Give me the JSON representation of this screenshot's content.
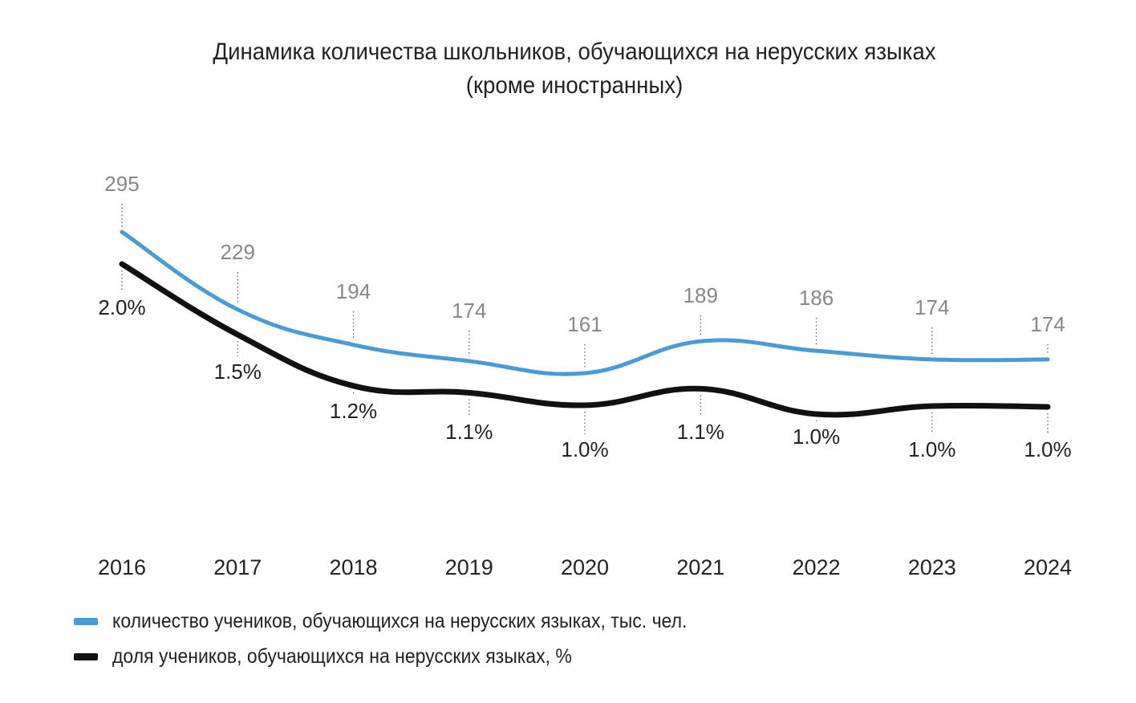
{
  "title": {
    "line1": "Динамика количества школьников, обучающихся на нерусских языках",
    "line2": "(кроме  иностранных)"
  },
  "colors": {
    "count_series": "#4a9ad6",
    "share_series": "#111111"
  },
  "legend": [
    {
      "label": "количество учеников, обучающихся на нерусских языках, тыс. чел.",
      "color": "#4a9ad6"
    },
    {
      "label": "доля учеников, обучающихся на нерусских языках, %",
      "color": "#111111"
    }
  ],
  "chart_data": {
    "type": "line",
    "title": "Динамика количества школьников, обучающихся на нерусских языках (кроме иностранных)",
    "xlabel": "",
    "ylabel": "",
    "categories": [
      "2016",
      "2017",
      "2018",
      "2019",
      "2020",
      "2021",
      "2022",
      "2023",
      "2024"
    ],
    "series": [
      {
        "name": "количество учеников, обучающихся на нерусских языках, тыс. чел.",
        "values": [
          295,
          229,
          194,
          174,
          161,
          189,
          186,
          174,
          174
        ],
        "labels": [
          "295",
          "229",
          "194",
          "174",
          "161",
          "189",
          "186",
          "174",
          "174"
        ],
        "color": "#4a9ad6"
      },
      {
        "name": "доля учеников, обучающихся на нерусских языках, %",
        "values": [
          2.0,
          1.5,
          1.2,
          1.1,
          1.0,
          1.1,
          1.0,
          1.0,
          1.0
        ],
        "labels": [
          "2.0%",
          "1.5%",
          "1.2%",
          "1.1%",
          "1.0%",
          "1.1%",
          "1.0%",
          "1.0%",
          "1.0%"
        ],
        "color": "#111111"
      }
    ],
    "grid": false,
    "smooth": true,
    "legend_position": "bottom-left"
  }
}
